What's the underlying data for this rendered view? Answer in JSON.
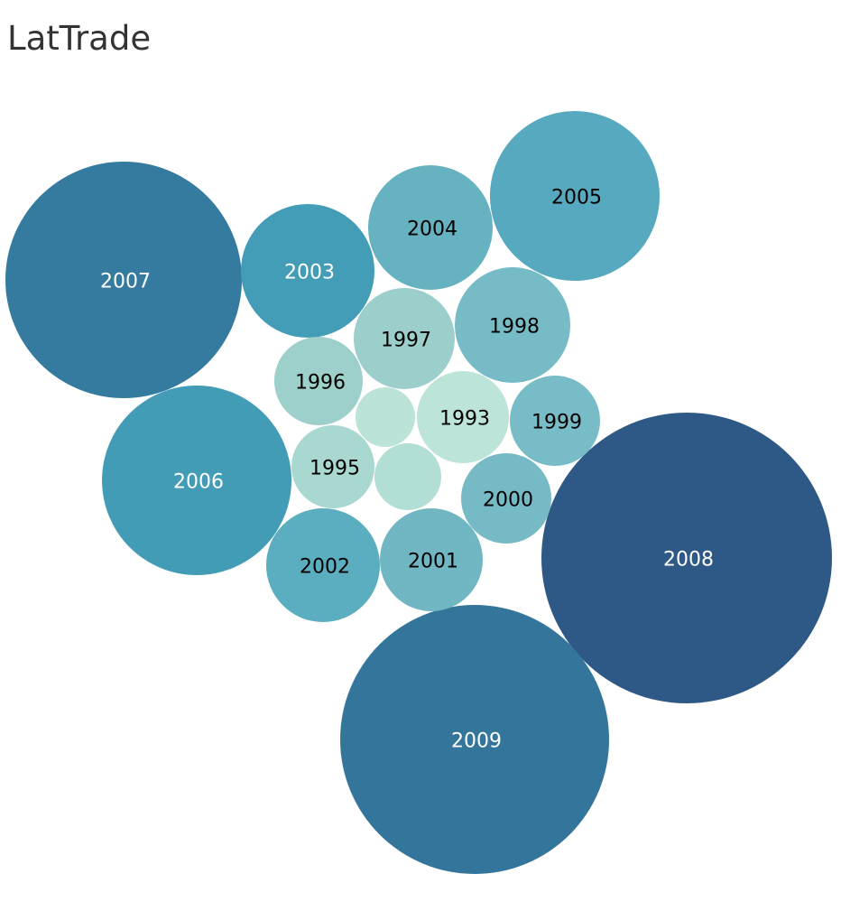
{
  "chart_data": {
    "type": "bubble",
    "title": "LatTrade",
    "note": "packed bubble chart; bubble size and colour depth reflect the yearly value",
    "bubbles": [
      {
        "label": "2008",
        "color": "#2e5986",
        "text_color": "#ffffff"
      },
      {
        "label": "2009",
        "color": "#33759b",
        "text_color": "#ffffff"
      },
      {
        "label": "2007",
        "color": "#347b9f",
        "text_color": "#ffffff"
      },
      {
        "label": "2006",
        "color": "#439cb6",
        "text_color": "#ffffff"
      },
      {
        "label": "2005",
        "color": "#57a9c0",
        "text_color": "#000000"
      },
      {
        "label": "2003",
        "color": "#439db7",
        "text_color": "#ffffff"
      },
      {
        "label": "2004",
        "color": "#67b2c0",
        "text_color": "#000000"
      },
      {
        "label": "1998",
        "color": "#77bbc7",
        "text_color": "#000000"
      },
      {
        "label": "2002",
        "color": "#5badc0",
        "text_color": "#000000"
      },
      {
        "label": "2001",
        "color": "#70b7c3",
        "text_color": "#000000"
      },
      {
        "label": "1997",
        "color": "#9ccfcb",
        "text_color": "#000000"
      },
      {
        "label": "1993",
        "color": "#bde4d9",
        "text_color": "#000000"
      },
      {
        "label": "1999",
        "color": "#78bcc7",
        "text_color": "#000000"
      },
      {
        "label": "2000",
        "color": "#76bac6",
        "text_color": "#000000"
      },
      {
        "label": "1996",
        "color": "#9dcfcb",
        "text_color": "#000000"
      },
      {
        "label": "1995",
        "color": "#a9d8d0",
        "text_color": "#000000"
      },
      {
        "label": "",
        "color": "#b2dfd5",
        "text_color": "#000000"
      },
      {
        "label": "",
        "color": "#bce3d8",
        "text_color": "#000000"
      }
    ]
  }
}
